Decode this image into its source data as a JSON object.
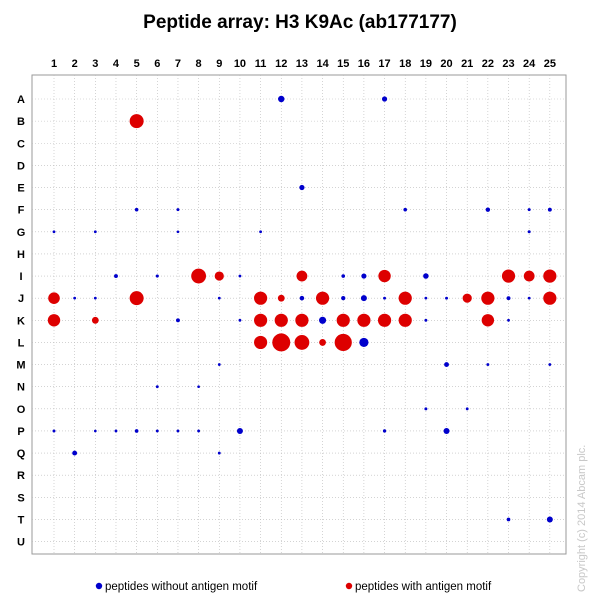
{
  "chart_data": {
    "type": "scatter",
    "title": "Peptide array:  H3 K9Ac (ab177177)",
    "columns": [
      "1",
      "2",
      "3",
      "4",
      "5",
      "6",
      "7",
      "8",
      "9",
      "10",
      "11",
      "12",
      "13",
      "14",
      "15",
      "16",
      "17",
      "18",
      "19",
      "20",
      "21",
      "22",
      "23",
      "24",
      "25"
    ],
    "rows": [
      "A",
      "B",
      "C",
      "D",
      "E",
      "F",
      "G",
      "H",
      "I",
      "J",
      "K",
      "L",
      "M",
      "N",
      "O",
      "P",
      "Q",
      "R",
      "S",
      "T",
      "U"
    ],
    "legend": [
      {
        "label": "peptides without antigen motif",
        "color": "#0000cc"
      },
      {
        "label": "peptides with antigen motif",
        "color": "#dd0000"
      }
    ],
    "copyright": "Copyright (c) 2014 Abcam plc.",
    "grid": true,
    "legend_position": "bottom",
    "size_scale": "relative signal intensity, 0-1",
    "colors": {
      "without_motif": "#0000cc",
      "with_motif": "#dd0000"
    },
    "series": [
      {
        "name": "peptides without antigen motif",
        "points": [
          {
            "col": "12",
            "row": "A",
            "signal": 0.28
          },
          {
            "col": "17",
            "row": "A",
            "signal": 0.2
          },
          {
            "col": "13",
            "row": "E",
            "signal": 0.2
          },
          {
            "col": "5",
            "row": "F",
            "signal": 0.1
          },
          {
            "col": "7",
            "row": "F",
            "signal": 0.06
          },
          {
            "col": "18",
            "row": "F",
            "signal": 0.1
          },
          {
            "col": "22",
            "row": "F",
            "signal": 0.15
          },
          {
            "col": "24",
            "row": "F",
            "signal": 0.06
          },
          {
            "col": "25",
            "row": "F",
            "signal": 0.12
          },
          {
            "col": "1",
            "row": "G",
            "signal": 0.05
          },
          {
            "col": "3",
            "row": "G",
            "signal": 0.05
          },
          {
            "col": "7",
            "row": "G",
            "signal": 0.04
          },
          {
            "col": "11",
            "row": "G",
            "signal": 0.05
          },
          {
            "col": "24",
            "row": "G",
            "signal": 0.06
          },
          {
            "col": "4",
            "row": "I",
            "signal": 0.12
          },
          {
            "col": "6",
            "row": "I",
            "signal": 0.07
          },
          {
            "col": "10",
            "row": "I",
            "signal": 0.05
          },
          {
            "col": "15",
            "row": "I",
            "signal": 0.1
          },
          {
            "col": "16",
            "row": "I",
            "signal": 0.2
          },
          {
            "col": "19",
            "row": "I",
            "signal": 0.22
          },
          {
            "col": "2",
            "row": "J",
            "signal": 0.05
          },
          {
            "col": "3",
            "row": "J",
            "signal": 0.05
          },
          {
            "col": "9",
            "row": "J",
            "signal": 0.05
          },
          {
            "col": "13",
            "row": "J",
            "signal": 0.16
          },
          {
            "col": "15",
            "row": "J",
            "signal": 0.14
          },
          {
            "col": "16",
            "row": "J",
            "signal": 0.25
          },
          {
            "col": "17",
            "row": "J",
            "signal": 0.06
          },
          {
            "col": "19",
            "row": "J",
            "signal": 0.05
          },
          {
            "col": "20",
            "row": "J",
            "signal": 0.06
          },
          {
            "col": "23",
            "row": "J",
            "signal": 0.12
          },
          {
            "col": "24",
            "row": "J",
            "signal": 0.05
          },
          {
            "col": "7",
            "row": "K",
            "signal": 0.12
          },
          {
            "col": "10",
            "row": "K",
            "signal": 0.05
          },
          {
            "col": "14",
            "row": "K",
            "signal": 0.32
          },
          {
            "col": "19",
            "row": "K",
            "signal": 0.06
          },
          {
            "col": "23",
            "row": "K",
            "signal": 0.05
          },
          {
            "col": "16",
            "row": "L",
            "signal": 0.45
          },
          {
            "col": "9",
            "row": "M",
            "signal": 0.05
          },
          {
            "col": "20",
            "row": "M",
            "signal": 0.18
          },
          {
            "col": "22",
            "row": "M",
            "signal": 0.06
          },
          {
            "col": "25",
            "row": "M",
            "signal": 0.05
          },
          {
            "col": "6",
            "row": "N",
            "signal": 0.05
          },
          {
            "col": "8",
            "row": "N",
            "signal": 0.04
          },
          {
            "col": "19",
            "row": "O",
            "signal": 0.06
          },
          {
            "col": "21",
            "row": "O",
            "signal": 0.05
          },
          {
            "col": "1",
            "row": "P",
            "signal": 0.06
          },
          {
            "col": "3",
            "row": "P",
            "signal": 0.04
          },
          {
            "col": "4",
            "row": "P",
            "signal": 0.05
          },
          {
            "col": "5",
            "row": "P",
            "signal": 0.1
          },
          {
            "col": "6",
            "row": "P",
            "signal": 0.05
          },
          {
            "col": "7",
            "row": "P",
            "signal": 0.05
          },
          {
            "col": "8",
            "row": "P",
            "signal": 0.05
          },
          {
            "col": "10",
            "row": "P",
            "signal": 0.25
          },
          {
            "col": "17",
            "row": "P",
            "signal": 0.08
          },
          {
            "col": "20",
            "row": "P",
            "signal": 0.25
          },
          {
            "col": "2",
            "row": "Q",
            "signal": 0.18
          },
          {
            "col": "9",
            "row": "Q",
            "signal": 0.05
          },
          {
            "col": "23",
            "row": "T",
            "signal": 0.1
          },
          {
            "col": "25",
            "row": "T",
            "signal": 0.25
          }
        ]
      },
      {
        "name": "peptides with antigen motif",
        "points": [
          {
            "col": "5",
            "row": "B",
            "signal": 0.75
          },
          {
            "col": "8",
            "row": "I",
            "signal": 0.8
          },
          {
            "col": "9",
            "row": "I",
            "signal": 0.45
          },
          {
            "col": "13",
            "row": "I",
            "signal": 0.55
          },
          {
            "col": "17",
            "row": "I",
            "signal": 0.65
          },
          {
            "col": "23",
            "row": "I",
            "signal": 0.7
          },
          {
            "col": "24",
            "row": "I",
            "signal": 0.55
          },
          {
            "col": "25",
            "row": "I",
            "signal": 0.7
          },
          {
            "col": "1",
            "row": "J",
            "signal": 0.6
          },
          {
            "col": "5",
            "row": "J",
            "signal": 0.75
          },
          {
            "col": "11",
            "row": "J",
            "signal": 0.7
          },
          {
            "col": "12",
            "row": "J",
            "signal": 0.3
          },
          {
            "col": "14",
            "row": "J",
            "signal": 0.7
          },
          {
            "col": "18",
            "row": "J",
            "signal": 0.7
          },
          {
            "col": "21",
            "row": "J",
            "signal": 0.45
          },
          {
            "col": "22",
            "row": "J",
            "signal": 0.7
          },
          {
            "col": "25",
            "row": "J",
            "signal": 0.7
          },
          {
            "col": "1",
            "row": "K",
            "signal": 0.65
          },
          {
            "col": "3",
            "row": "K",
            "signal": 0.3
          },
          {
            "col": "11",
            "row": "K",
            "signal": 0.7
          },
          {
            "col": "12",
            "row": "K",
            "signal": 0.7
          },
          {
            "col": "13",
            "row": "K",
            "signal": 0.7
          },
          {
            "col": "15",
            "row": "K",
            "signal": 0.7
          },
          {
            "col": "16",
            "row": "K",
            "signal": 0.7
          },
          {
            "col": "17",
            "row": "K",
            "signal": 0.7
          },
          {
            "col": "18",
            "row": "K",
            "signal": 0.7
          },
          {
            "col": "22",
            "row": "K",
            "signal": 0.65
          },
          {
            "col": "11",
            "row": "L",
            "signal": 0.7
          },
          {
            "col": "12",
            "row": "L",
            "signal": 1.0
          },
          {
            "col": "13",
            "row": "L",
            "signal": 0.8
          },
          {
            "col": "14",
            "row": "L",
            "signal": 0.3
          },
          {
            "col": "15",
            "row": "L",
            "signal": 0.95
          }
        ]
      }
    ]
  }
}
